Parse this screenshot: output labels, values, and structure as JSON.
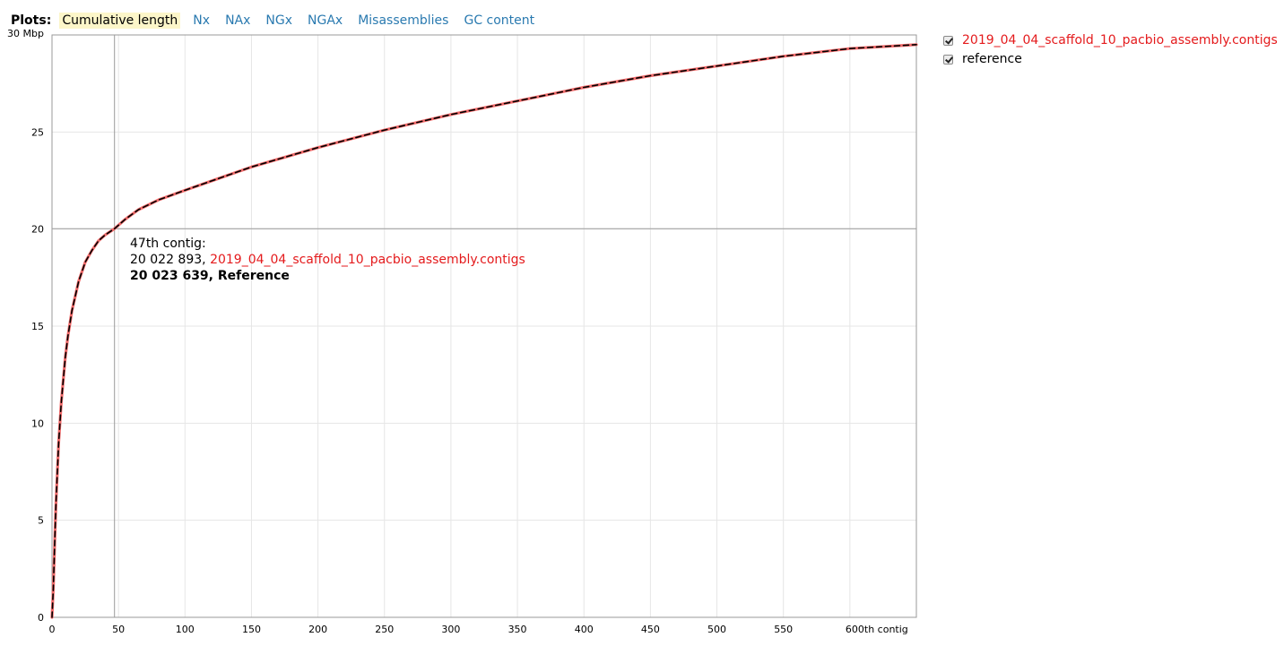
{
  "plots_bar": {
    "label": "Plots:",
    "tabs": [
      {
        "label": "Cumulative length",
        "selected": true
      },
      {
        "label": "Nx",
        "selected": false
      },
      {
        "label": "NAx",
        "selected": false
      },
      {
        "label": "NGx",
        "selected": false
      },
      {
        "label": "NGAx",
        "selected": false
      },
      {
        "label": "Misassemblies",
        "selected": false
      },
      {
        "label": "GC content",
        "selected": false
      }
    ]
  },
  "legend": {
    "items": [
      {
        "label": "2019_04_04_scaffold_10_pacbio_assembly.contigs",
        "checked": true,
        "color": "#e41a1c"
      },
      {
        "label": "reference",
        "checked": true,
        "color": "#000000"
      }
    ]
  },
  "tooltip": {
    "title": "47th contig:",
    "assembly_value": "20 022 893,",
    "assembly_name": "2019_04_04_scaffold_10_pacbio_assembly.contigs",
    "reference_text": "20 023 639, Reference"
  },
  "chart_data": {
    "type": "line",
    "title": "",
    "xlabel": "",
    "ylabel": "",
    "xlim": [
      0,
      650
    ],
    "ylim": [
      0,
      30
    ],
    "x_ticks": [
      0,
      50,
      100,
      150,
      200,
      250,
      300,
      350,
      400,
      450,
      500,
      550,
      600
    ],
    "x_tick_labels": [
      "0",
      "50",
      "100",
      "150",
      "200",
      "250",
      "300",
      "350",
      "400",
      "450",
      "500",
      "550",
      "600th contig"
    ],
    "y_ticks": [
      0,
      5,
      10,
      15,
      20,
      25,
      30
    ],
    "y_tick_labels": [
      "0",
      "5",
      "10",
      "15",
      "20",
      "25",
      "30 Mbp"
    ],
    "grid": true,
    "legend_position": "right",
    "highlight": {
      "x": 47,
      "y": 20.02
    },
    "x": [
      0,
      1,
      2,
      3,
      5,
      7,
      10,
      12,
      15,
      20,
      25,
      30,
      35,
      40,
      47,
      55,
      65,
      80,
      100,
      150,
      200,
      250,
      300,
      350,
      400,
      450,
      500,
      550,
      600,
      650
    ],
    "series": [
      {
        "name": "2019_04_04_scaffold_10_pacbio_assembly.contigs",
        "color": "#f26b6b",
        "dashed": false,
        "values": [
          0,
          1.5,
          3.8,
          5.9,
          9.0,
          11.1,
          13.4,
          14.5,
          15.8,
          17.3,
          18.3,
          18.9,
          19.4,
          19.7,
          20.02,
          20.5,
          21.0,
          21.5,
          22.0,
          23.2,
          24.2,
          25.1,
          25.9,
          26.6,
          27.3,
          27.9,
          28.4,
          28.9,
          29.3,
          29.5
        ]
      },
      {
        "name": "Reference",
        "color": "#000000",
        "dashed": true,
        "values": [
          0,
          1.5,
          3.8,
          5.9,
          9.0,
          11.1,
          13.4,
          14.5,
          15.8,
          17.3,
          18.3,
          18.9,
          19.4,
          19.7,
          20.02,
          20.5,
          21.0,
          21.5,
          22.0,
          23.2,
          24.2,
          25.1,
          25.9,
          26.6,
          27.3,
          27.9,
          28.4,
          28.9,
          29.3,
          29.5
        ]
      }
    ]
  }
}
